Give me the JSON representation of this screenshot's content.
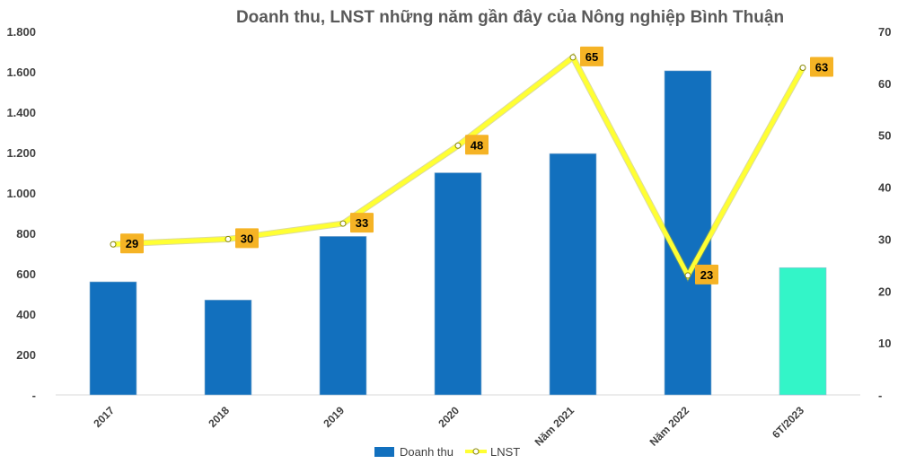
{
  "chart_data": {
    "type": "bar",
    "title": "Doanh thu, LNST những năm gần đây của Nông nghiệp Bình Thuận",
    "categories": [
      "2017",
      "2018",
      "2019",
      "2020",
      "Năm 2021",
      "Năm 2022",
      "6T/2023"
    ],
    "series": [
      {
        "name": "Doanh thu",
        "type": "bar",
        "axis": "left",
        "values": [
          560,
          470,
          785,
          1100,
          1195,
          1605,
          630
        ],
        "colors": [
          "#1270be",
          "#1270be",
          "#1270be",
          "#1270be",
          "#1270be",
          "#1270be",
          "#33f5c8"
        ]
      },
      {
        "name": "LNST",
        "type": "line",
        "axis": "right",
        "values": [
          29,
          30,
          33,
          48,
          65,
          23,
          63
        ],
        "color": "#ffff33",
        "label_bg": "#f5b325"
      }
    ],
    "y_left": {
      "ylim": [
        0,
        1800
      ],
      "ticks": [
        0,
        200,
        400,
        600,
        800,
        1000,
        1200,
        1400,
        1600,
        1800
      ],
      "tick_labels": [
        "-",
        "200",
        "400",
        "600",
        "800",
        "1.000",
        "1.200",
        "1.400",
        "1.600",
        "1.800"
      ]
    },
    "y_right": {
      "ylim": [
        0,
        70
      ],
      "ticks": [
        0,
        10,
        20,
        30,
        40,
        50,
        60,
        70
      ],
      "tick_labels": [
        "-",
        "10",
        "20",
        "30",
        "40",
        "50",
        "60",
        "70"
      ]
    },
    "grid": false,
    "legend": "bottom"
  }
}
